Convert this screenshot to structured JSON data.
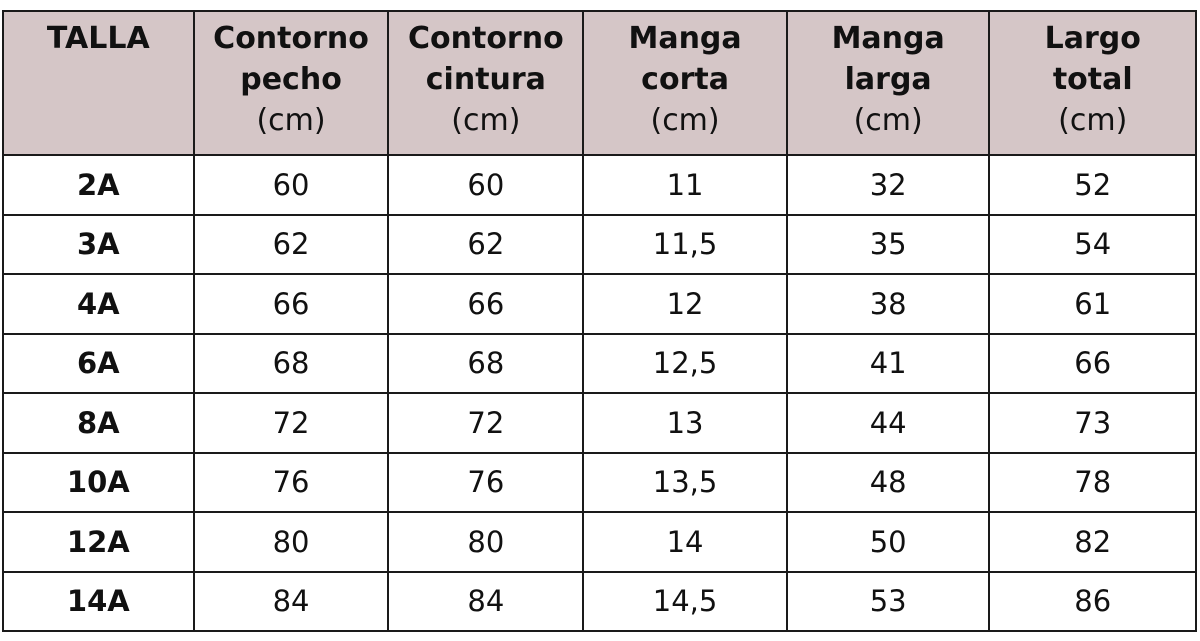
{
  "table": {
    "headers": [
      {
        "lines": [
          "TALLA"
        ],
        "unit": ""
      },
      {
        "lines": [
          "Contorno",
          "pecho"
        ],
        "unit": "(cm)"
      },
      {
        "lines": [
          "Contorno",
          "cintura"
        ],
        "unit": "(cm)"
      },
      {
        "lines": [
          "Manga",
          "corta"
        ],
        "unit": "(cm)"
      },
      {
        "lines": [
          "Manga",
          "larga"
        ],
        "unit": "(cm)"
      },
      {
        "lines": [
          "Largo",
          "total"
        ],
        "unit": "(cm)"
      }
    ],
    "rows": [
      [
        "2A",
        "60",
        "60",
        "11",
        "32",
        "52"
      ],
      [
        "3A",
        "62",
        "62",
        "11,5",
        "35",
        "54"
      ],
      [
        "4A",
        "66",
        "66",
        "12",
        "38",
        "61"
      ],
      [
        "6A",
        "68",
        "68",
        "12,5",
        "41",
        "66"
      ],
      [
        "8A",
        "72",
        "72",
        "13",
        "44",
        "73"
      ],
      [
        "10A",
        "76",
        "76",
        "13,5",
        "48",
        "78"
      ],
      [
        "12A",
        "80",
        "80",
        "14",
        "50",
        "82"
      ],
      [
        "14A",
        "84",
        "84",
        "14,5",
        "53",
        "86"
      ]
    ]
  },
  "colors": {
    "header_bg": "#d5c6c7",
    "border": "#1a1a1a"
  }
}
